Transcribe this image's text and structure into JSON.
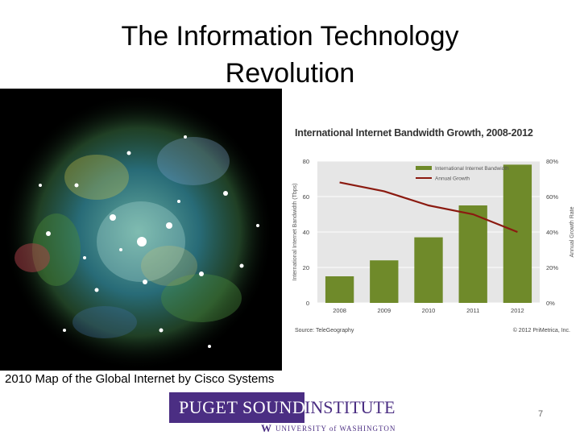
{
  "slide": {
    "title_line1": "The Information Technology",
    "title_line2": "Revolution",
    "caption": "2010 Map of the Global Internet by Cisco Systems",
    "page_number": "7"
  },
  "logo": {
    "left": "PUGET SOUND",
    "right": "INSTITUTE",
    "sub_w": "W",
    "sub_text": "UNIVERSITY of WASHINGTON"
  },
  "chart_data": {
    "type": "bar",
    "title": "International Internet Bandwidth Growth, 2008-2012",
    "categories": [
      "2008",
      "2009",
      "2010",
      "2011",
      "2012"
    ],
    "series": [
      {
        "name": "International Internet Bandwidth",
        "kind": "bar",
        "axis": "left",
        "color": "#6f8a2a",
        "values": [
          15,
          24,
          37,
          55,
          78
        ]
      },
      {
        "name": "Annual Growth",
        "kind": "line",
        "axis": "right",
        "color": "#8b1a10",
        "values": [
          68,
          63,
          55,
          50,
          40
        ]
      }
    ],
    "ylabel": "International Internet Bandwidth (Tbps)",
    "ylabel_right": "Annual Growth Rate",
    "ylim": [
      0,
      80
    ],
    "yticks": [
      "0",
      "20",
      "40",
      "60",
      "80"
    ],
    "ylim_right": [
      0,
      80
    ],
    "yticks_right": [
      "0%",
      "20%",
      "40%",
      "60%",
      "80%"
    ],
    "legend_position": "top",
    "source": "Source: TeleGeography",
    "copyright": "© 2012 PriMetrica, Inc.",
    "grid": true,
    "plot_background": "#e6e6e6"
  }
}
